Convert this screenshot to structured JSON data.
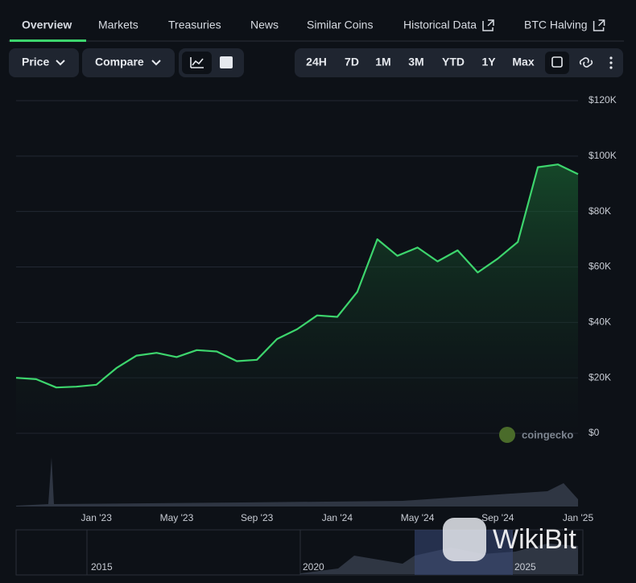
{
  "tabs": [
    "Overview",
    "Markets",
    "Treasuries",
    "News",
    "Similar Coins",
    "Historical Data",
    "BTC Halving"
  ],
  "controls": {
    "price": "Price",
    "compare": "Compare"
  },
  "ranges": [
    "24H",
    "7D",
    "1M",
    "3M",
    "YTD",
    "1Y",
    "Max"
  ],
  "chart_data": {
    "type": "area",
    "color": "#3dd56d",
    "x": [
      "Sep '22",
      "Oct '22",
      "Nov '22",
      "Dec '22",
      "Jan '23",
      "Feb '23",
      "Mar '23",
      "Apr '23",
      "May '23",
      "Jun '23",
      "Jul '23",
      "Aug '23",
      "Sep '23",
      "Oct '23",
      "Nov '23",
      "Dec '23",
      "Jan '24",
      "Feb '24",
      "Mar '24",
      "Apr '24",
      "May '24",
      "Jun '24",
      "Jul '24",
      "Aug '24",
      "Sep '24",
      "Oct '24",
      "Nov '24",
      "Dec '24",
      "Jan '25"
    ],
    "values": [
      20000,
      19500,
      16500,
      16800,
      17500,
      23500,
      28000,
      29000,
      27500,
      30000,
      29500,
      26000,
      26500,
      34000,
      37500,
      42500,
      42000,
      51000,
      70000,
      64000,
      67000,
      62000,
      66000,
      58000,
      63000,
      69000,
      96000,
      97000,
      93500
    ],
    "xticks": [
      "Jan '23",
      "May '23",
      "Sep '23",
      "Jan '24",
      "May '24",
      "Sep '24",
      "Jan '25"
    ],
    "ylim": [
      0,
      120000
    ],
    "yticks": [
      {
        "value": 0,
        "label": "$0"
      },
      {
        "value": 20000,
        "label": "$20K"
      },
      {
        "value": 40000,
        "label": "$40K"
      },
      {
        "value": 60000,
        "label": "$60K"
      },
      {
        "value": 80000,
        "label": "$80K"
      },
      {
        "value": 100000,
        "label": "$100K"
      },
      {
        "value": 120000,
        "label": "$120K"
      }
    ],
    "grid": true
  },
  "watermark": "coingecko",
  "navigator": [
    "2015",
    "2020",
    "2025"
  ],
  "overlay": "WikiBit"
}
